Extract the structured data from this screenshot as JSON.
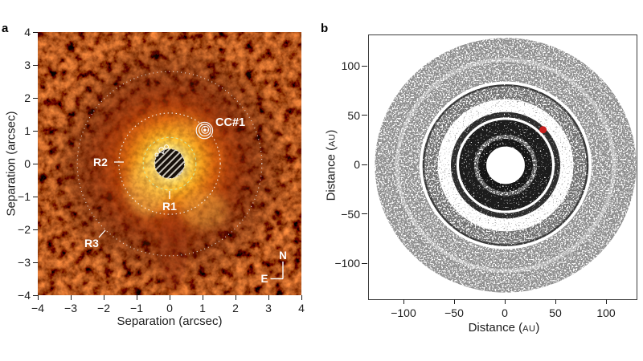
{
  "figure": {
    "panel_a_label": "a",
    "panel_b_label": "b"
  },
  "panel_a": {
    "xlabel": "Separation (arcsec)",
    "ylabel": "Separation (arcsec)",
    "annotations": {
      "companion": "CC#1",
      "ring1": "R1",
      "ring2": "R2",
      "ring3": "R3",
      "compass_north": "N",
      "compass_east": "E"
    }
  },
  "panel_b": {
    "xlabel_prefix": "Distance (",
    "xlabel_unit": "AU",
    "xlabel_suffix": ")",
    "ylabel_prefix": "Distance (",
    "ylabel_unit": "AU",
    "ylabel_suffix": ")"
  },
  "chart_data": [
    {
      "panel": "a",
      "type": "heatmap",
      "description": "Coronagraphic near-infrared image of a circumstellar dust disk around the central star, heat colormap (black-red-orange-yellow-white), bright stellar halo centred at (0,0), candidate companion CC#1 detected north-east of the star",
      "xlabel": "Separation (arcsec)",
      "ylabel": "Separation (arcsec)",
      "xlim": [
        -4,
        4
      ],
      "ylim": [
        -4,
        4
      ],
      "x_ticks": [
        -4,
        -3,
        -2,
        -1,
        0,
        1,
        2,
        3,
        4
      ],
      "y_ticks": [
        4,
        3,
        2,
        1,
        0,
        -1,
        -2,
        -3,
        -4
      ],
      "grid": false,
      "central_mask": {
        "x": 0,
        "y": 0,
        "radius": 0.45,
        "style": "hatched occulting mask"
      },
      "rings": [
        {
          "label": "R1",
          "radius": 0.8,
          "color": "#cde8a8",
          "dash": "3 3"
        },
        {
          "label": "R2",
          "radius": 1.54,
          "color": "#ffffff",
          "dash": "1.5 3.5"
        },
        {
          "label": "R3",
          "radius": 2.8,
          "color": "#efefef",
          "dash": "1 4"
        }
      ],
      "companion": {
        "label": "CC#1",
        "x": 1.07,
        "y": 1.02,
        "style": "white contour rings"
      },
      "compass": {
        "north": "N",
        "east": "E"
      }
    },
    {
      "panel": "b",
      "type": "scatter",
      "description": "Dynamical simulation of disk planetesimals (stippled particles) sculpted by a planet; planet position marked by red dot on its orbit at ~52 AU",
      "xlabel": "Distance (AU)",
      "ylabel": "Distance (AU)",
      "xlim": [
        -133,
        131
      ],
      "ylim": [
        -135,
        133
      ],
      "x_ticks": [
        -100,
        -50,
        0,
        50,
        100
      ],
      "y_ticks": [
        100,
        50,
        0,
        -50,
        -100
      ],
      "grid": false,
      "inner_hole_radius": 19,
      "outer_radius": 129,
      "planet": {
        "x": 37,
        "y": 36,
        "radius_au": 3.6,
        "color": "#c81f1e"
      },
      "orbit": {
        "radius": 51.5,
        "color": "#262626",
        "style": "dotted"
      },
      "disk_rings": [
        {
          "r_inner": 19,
          "r_outer": 27,
          "color": "#141414",
          "density": "dense"
        },
        {
          "r_inner": 27,
          "r_outer": 31,
          "color": "#555555",
          "density": "med"
        },
        {
          "r_inner": 31,
          "r_outer": 46,
          "color": "#1c1c1c",
          "density": "dense"
        },
        {
          "r_inner": 48.5,
          "r_outer": 54,
          "color": "#2e2e2e",
          "density": "dense"
        },
        {
          "r_inner": 54,
          "r_outer": 67,
          "color": "#999999",
          "density": "vsparse"
        },
        {
          "r_inner": 67,
          "r_outer": 80,
          "color": "#6f6f6f",
          "density": "med"
        },
        {
          "r_inner": 80,
          "r_outer": 82,
          "color": "#383838",
          "density": "dense"
        },
        {
          "r_inner": 85,
          "r_outer": 129,
          "color": "#8f8f8f",
          "density": "med"
        }
      ],
      "light_rings": [
        {
          "radius": 107,
          "width": 4,
          "opacity": 0.35
        },
        {
          "radius": 47.2,
          "width": 2.2,
          "opacity": 0.55
        }
      ]
    }
  ]
}
